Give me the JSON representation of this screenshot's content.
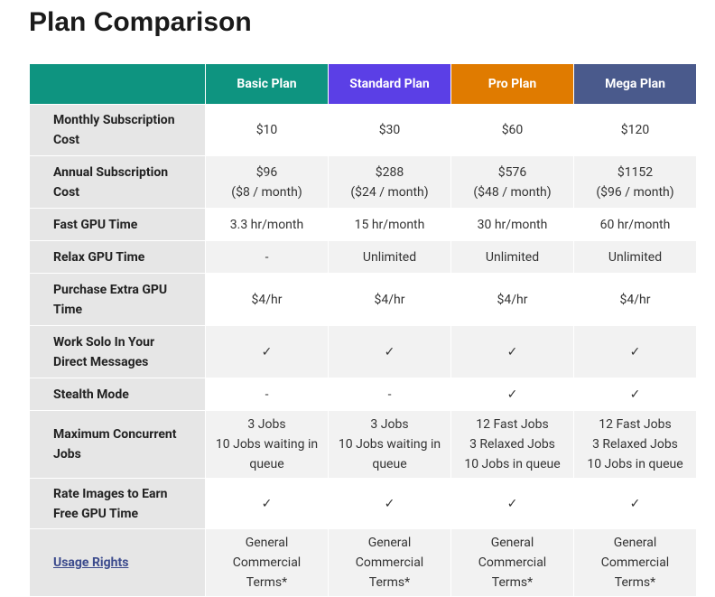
{
  "header": {
    "title": "Plan Comparison"
  },
  "table": {
    "columns": [
      "Basic Plan",
      "Standard Plan",
      "Pro Plan",
      "Mega Plan"
    ],
    "rows": [
      {
        "label": "Monthly Subscription Cost",
        "cells": [
          [
            "$10"
          ],
          [
            "$30"
          ],
          [
            "$60"
          ],
          [
            "$120"
          ]
        ]
      },
      {
        "label": "Annual Subscription Cost",
        "cells": [
          [
            "$96",
            "($8 / month)"
          ],
          [
            "$288",
            "($24 / month)"
          ],
          [
            "$576",
            "($48 / month)"
          ],
          [
            "$1152",
            "($96 / month)"
          ]
        ]
      },
      {
        "label": "Fast GPU Time",
        "cells": [
          [
            "3.3 hr/month"
          ],
          [
            "15 hr/month"
          ],
          [
            "30 hr/month"
          ],
          [
            "60 hr/month"
          ]
        ]
      },
      {
        "label": "Relax GPU Time",
        "cells": [
          [
            "-"
          ],
          [
            "Unlimited"
          ],
          [
            "Unlimited"
          ],
          [
            "Unlimited"
          ]
        ]
      },
      {
        "label": "Purchase Extra GPU Time",
        "cells": [
          [
            "$4/hr"
          ],
          [
            "$4/hr"
          ],
          [
            "$4/hr"
          ],
          [
            "$4/hr"
          ]
        ]
      },
      {
        "label": "Work Solo In Your Direct Messages",
        "cells": [
          [
            "✓"
          ],
          [
            "✓"
          ],
          [
            "✓"
          ],
          [
            "✓"
          ]
        ]
      },
      {
        "label": "Stealth Mode",
        "cells": [
          [
            "-"
          ],
          [
            "-"
          ],
          [
            "✓"
          ],
          [
            "✓"
          ]
        ]
      },
      {
        "label": "Maximum Concurrent Jobs",
        "cells": [
          [
            "3 Jobs",
            "10 Jobs waiting in queue"
          ],
          [
            "3 Jobs",
            "10 Jobs waiting in queue"
          ],
          [
            "12 Fast Jobs",
            "3 Relaxed Jobs",
            "10 Jobs in queue"
          ],
          [
            "12 Fast Jobs",
            "3 Relaxed Jobs",
            "10 Jobs in queue"
          ]
        ]
      },
      {
        "label": "Rate Images to Earn Free GPU Time",
        "cells": [
          [
            "✓"
          ],
          [
            "✓"
          ],
          [
            "✓"
          ],
          [
            "✓"
          ]
        ]
      },
      {
        "label": "Usage Rights",
        "link": true,
        "cells": [
          [
            "General Commercial Terms*"
          ],
          [
            "General Commercial Terms*"
          ],
          [
            "General Commercial Terms*"
          ],
          [
            "General Commercial Terms*"
          ]
        ]
      }
    ]
  }
}
